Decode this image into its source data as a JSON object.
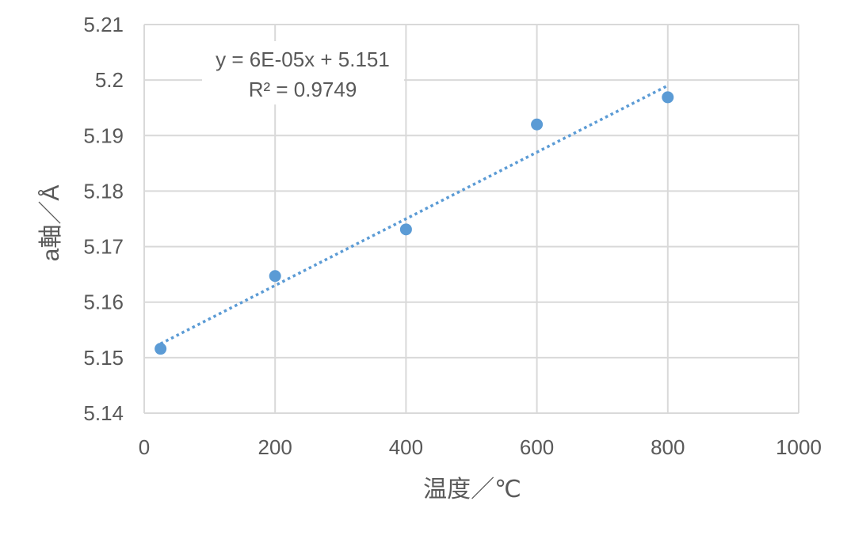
{
  "chart_data": {
    "type": "scatter",
    "xlabel": "温度／℃",
    "ylabel": "a軸／Å",
    "xlim": [
      0,
      1000
    ],
    "ylim": [
      5.14,
      5.21
    ],
    "x_ticks": [
      "0",
      "200",
      "400",
      "600",
      "800",
      "1000"
    ],
    "y_ticks": [
      "5.14",
      "5.15",
      "5.16",
      "5.17",
      "5.18",
      "5.19",
      "5.2",
      "5.21"
    ],
    "grid": true,
    "series": [
      {
        "x": [
          25,
          200,
          400,
          600,
          800
        ],
        "y": [
          5.1516,
          5.1647,
          5.1731,
          5.192,
          5.1969
        ],
        "color": "#5B9BD5"
      }
    ],
    "trendline": {
      "type": "linear",
      "slope": 6e-05,
      "intercept": 5.151,
      "x_range": [
        25,
        800
      ],
      "style": "dotted",
      "color": "#5B9BD5",
      "equation": "y = 6E-05x + 5.151",
      "r_squared": "R² = 0.9749"
    }
  }
}
